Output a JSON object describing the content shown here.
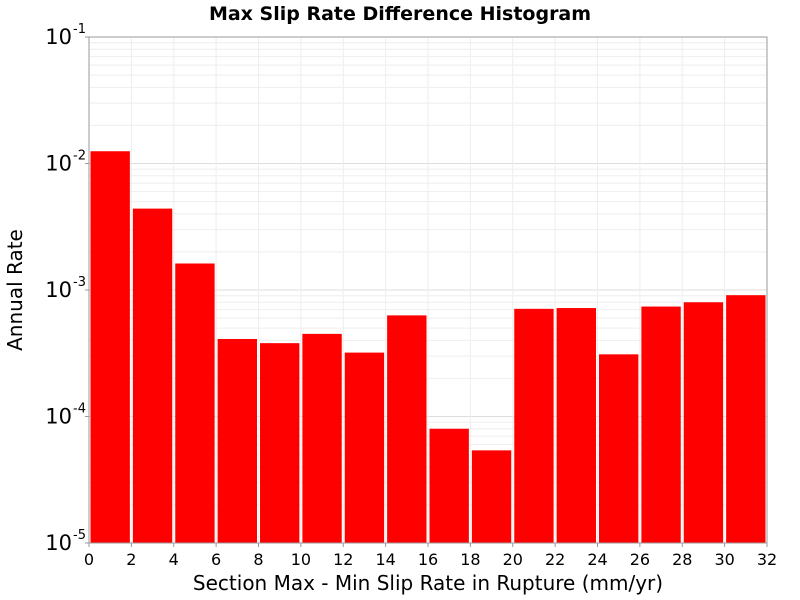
{
  "chart_data": {
    "type": "bar",
    "title": "Max Slip Rate Difference Histogram",
    "xlabel": "Section Max - Min Slip Rate in Rupture (mm/yr)",
    "ylabel": "Annual Rate",
    "xlim": [
      0,
      32
    ],
    "ylim": [
      1e-05,
      0.1
    ],
    "y_scale": "log",
    "bin_width": 2,
    "x_ticks": [
      "0",
      "2",
      "4",
      "6",
      "8",
      "10",
      "12",
      "14",
      "16",
      "18",
      "20",
      "22",
      "24",
      "26",
      "28",
      "30",
      "32"
    ],
    "y_ticks": [
      {
        "base": "10",
        "exp": "-5",
        "value": 1e-05
      },
      {
        "base": "10",
        "exp": "-4",
        "value": 0.0001
      },
      {
        "base": "10",
        "exp": "-3",
        "value": 0.001
      },
      {
        "base": "10",
        "exp": "-2",
        "value": 0.01
      },
      {
        "base": "10",
        "exp": "-1",
        "value": 0.1
      }
    ],
    "bins": [
      0,
      2,
      4,
      6,
      8,
      10,
      12,
      14,
      16,
      18,
      20,
      22,
      24,
      26,
      28,
      30
    ],
    "values": [
      0.0125,
      0.0044,
      0.00162,
      0.00041,
      0.00038,
      0.00045,
      0.00032,
      0.00063,
      8e-05,
      5.4e-05,
      0.00071,
      0.00072,
      0.00031,
      0.00074,
      0.0008,
      0.00091
    ],
    "bar_color": "#ff0000",
    "grid": true
  }
}
